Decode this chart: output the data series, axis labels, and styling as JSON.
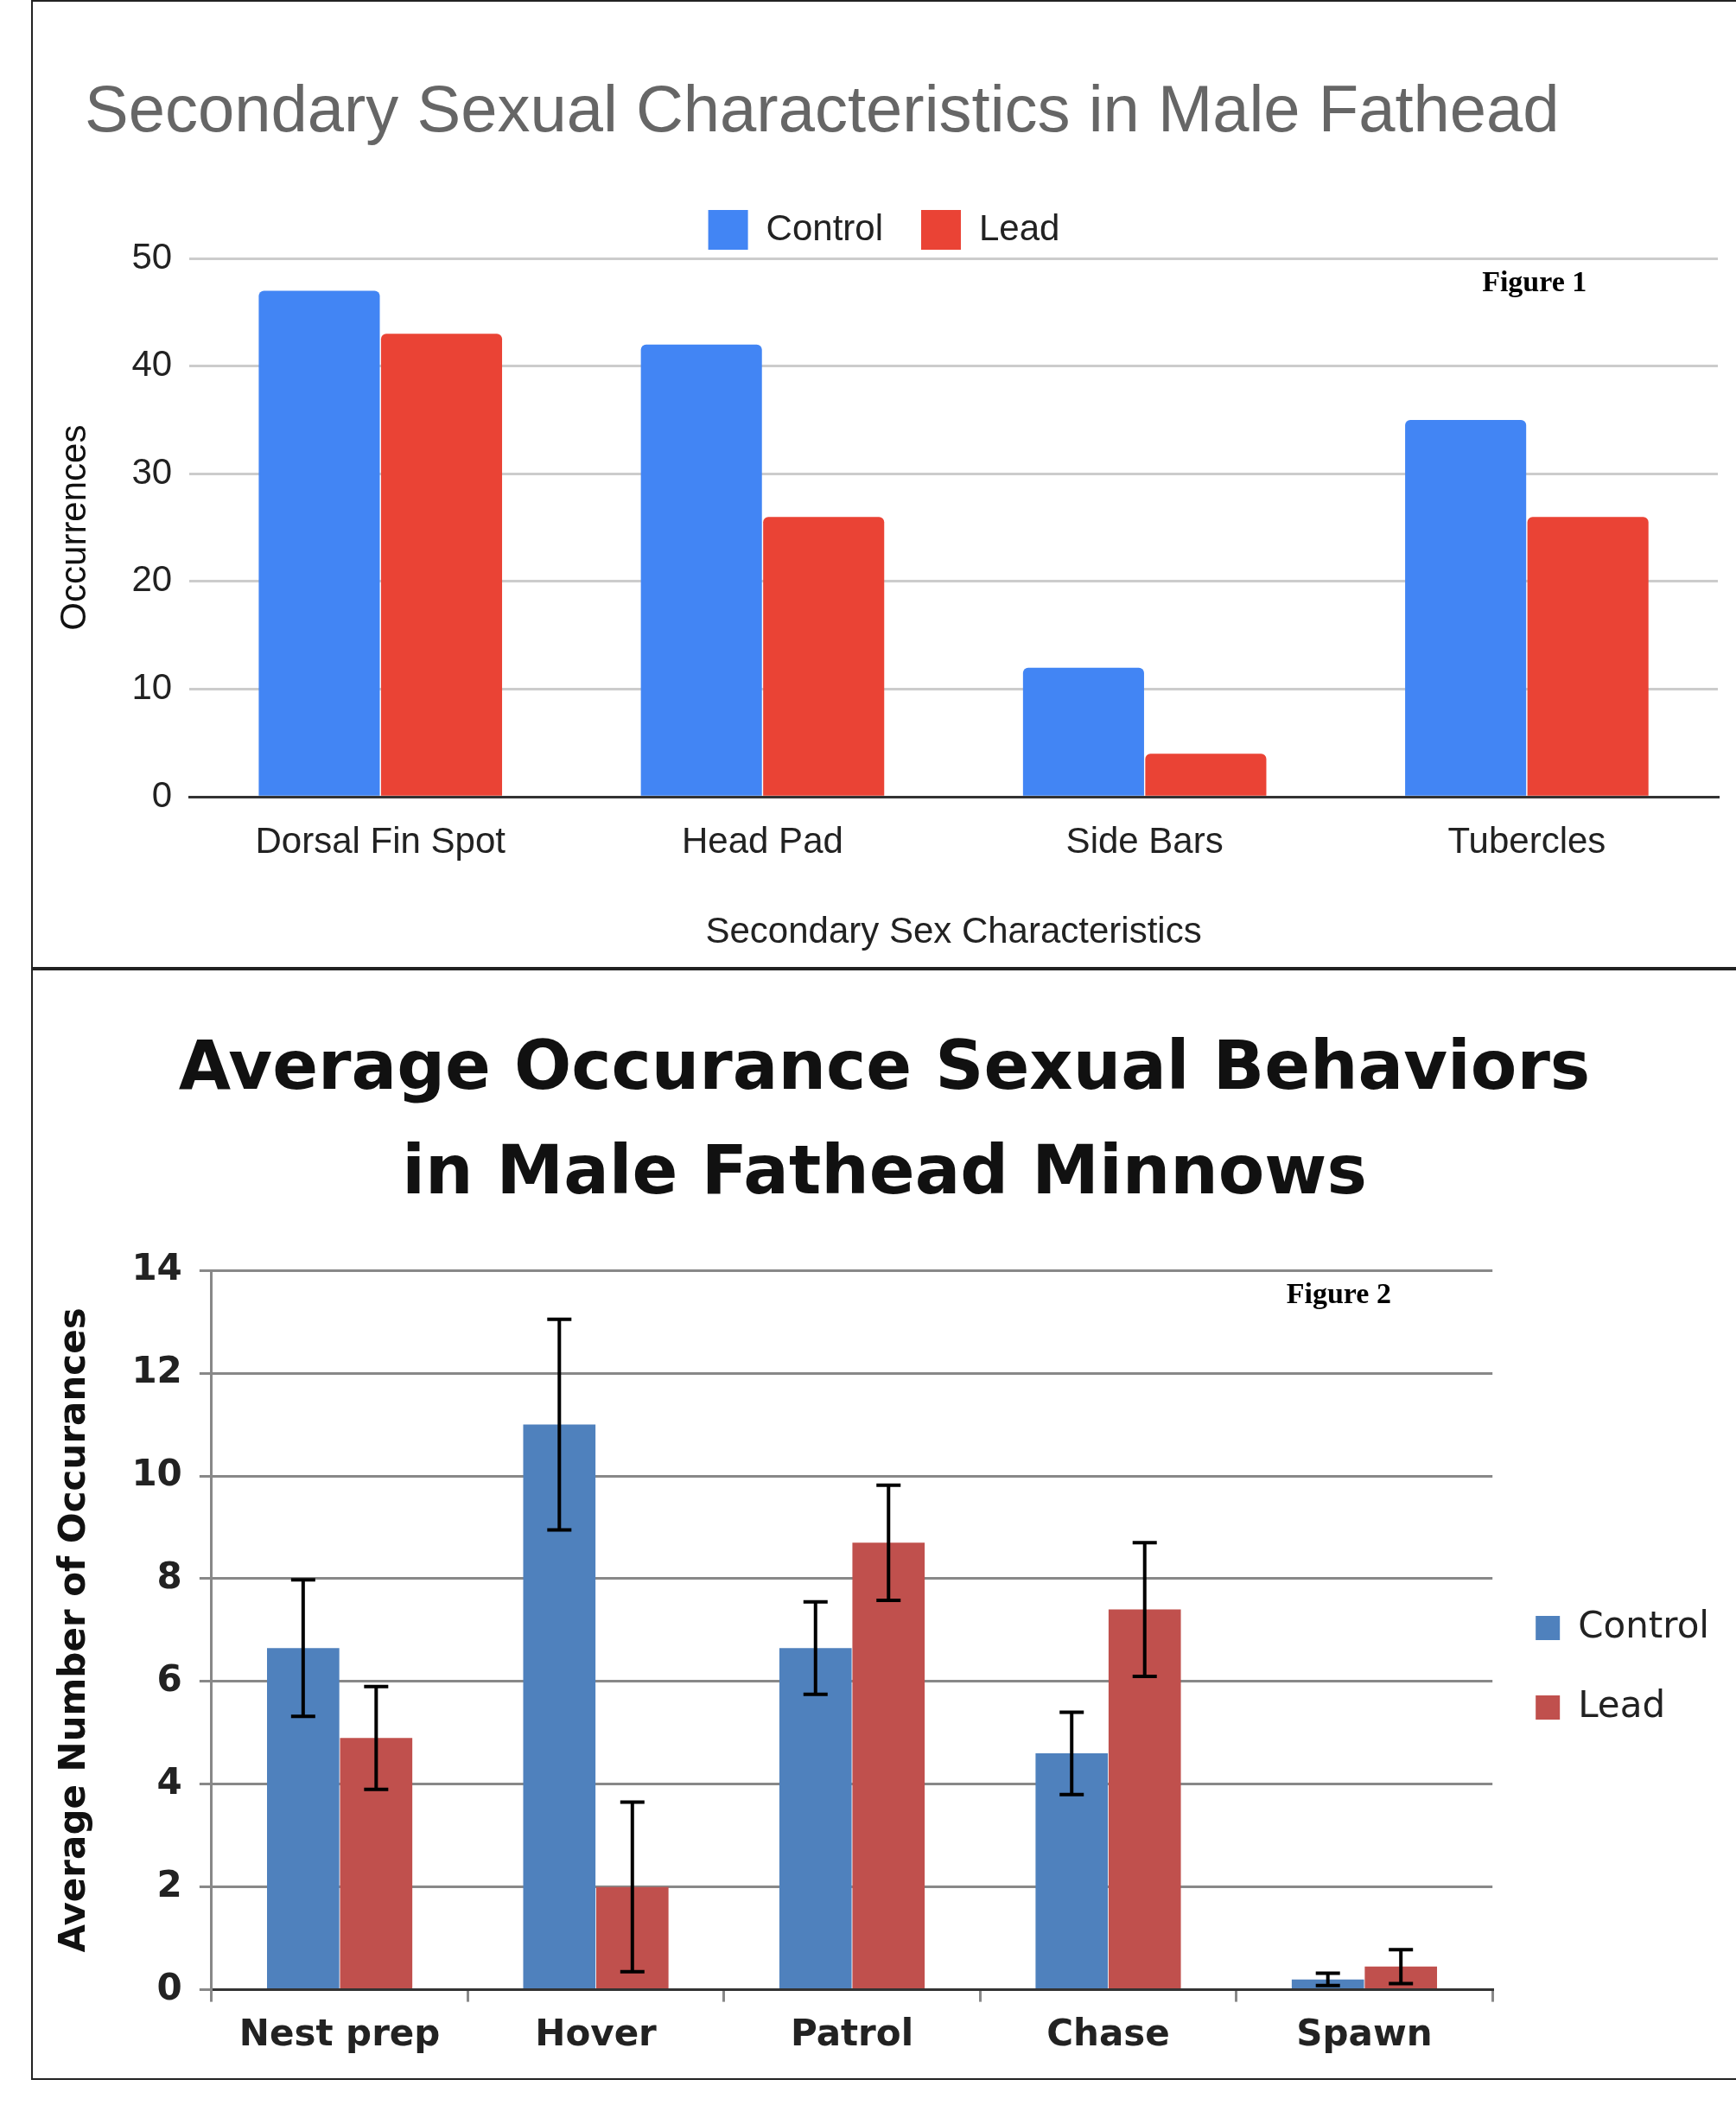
{
  "chart_data": [
    {
      "type": "bar",
      "title": "Secondary Sexual Characteristics in Male Fathead",
      "xlabel": "Secondary Sex Characteristics",
      "ylabel": "Occurrences",
      "categories": [
        "Dorsal Fin Spot",
        "Head Pad",
        "Side Bars",
        "Tubercles"
      ],
      "series": [
        {
          "name": "Control",
          "color": "#4285f4",
          "values": [
            47,
            42,
            12,
            35
          ]
        },
        {
          "name": "Lead",
          "color": "#ea4335",
          "values": [
            43,
            26,
            4,
            26
          ]
        }
      ],
      "ylim": [
        0,
        50
      ],
      "yticks": [
        0,
        10,
        20,
        30,
        40,
        50
      ],
      "grid": "y",
      "legend": "top",
      "annotations": [
        "Figure 1"
      ]
    },
    {
      "type": "bar",
      "title": "Average Occurance Sexual Behaviors in Male Fathead Minnows",
      "ylabel": "Average Number of Occurances",
      "categories": [
        "Nest prep",
        "Hover",
        "Patrol",
        "Chase",
        "Spawn"
      ],
      "series": [
        {
          "name": "Control",
          "color": "#4f81bd",
          "values": [
            6.65,
            11,
            6.65,
            4.6,
            0.2
          ],
          "errors": [
            1.33,
            2.05,
            0.9,
            0.8,
            0.12
          ]
        },
        {
          "name": "Lead",
          "color": "#c0504d",
          "values": [
            4.9,
            2.0,
            8.7,
            7.4,
            0.45
          ],
          "errors": [
            1.0,
            1.65,
            1.12,
            1.3,
            0.33
          ]
        }
      ],
      "ylim": [
        0,
        14
      ],
      "yticks": [
        0,
        2,
        4,
        6,
        8,
        10,
        12,
        14
      ],
      "grid": "y",
      "legend": "right",
      "annotations": [
        "Figure 2"
      ]
    }
  ]
}
